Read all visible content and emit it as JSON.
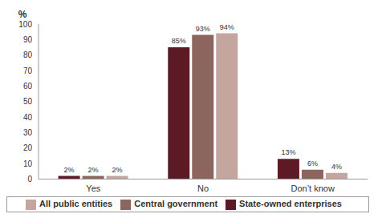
{
  "chart_data": {
    "type": "bar",
    "y_label": "%",
    "categories": [
      "Yes",
      "No",
      "Don’t know"
    ],
    "series": [
      {
        "name": "State-owned enterprises",
        "color": "#5c1a24",
        "values": [
          2,
          85,
          13
        ],
        "value_labels": [
          "2%",
          "85%",
          "13%"
        ]
      },
      {
        "name": "Central government",
        "color": "#8c655f",
        "values": [
          2,
          93,
          6
        ],
        "value_labels": [
          "2%",
          "93%",
          "6%"
        ]
      },
      {
        "name": "All public entities",
        "color": "#c4a69f",
        "values": [
          2,
          94,
          4
        ],
        "value_labels": [
          "2%",
          "94%",
          "4%"
        ]
      }
    ],
    "ylim": [
      0,
      100
    ],
    "yticks": [
      0,
      10,
      20,
      30,
      40,
      50,
      60,
      70,
      80,
      90,
      100
    ],
    "data_labels": true,
    "legend": "bottom",
    "grid": false
  }
}
